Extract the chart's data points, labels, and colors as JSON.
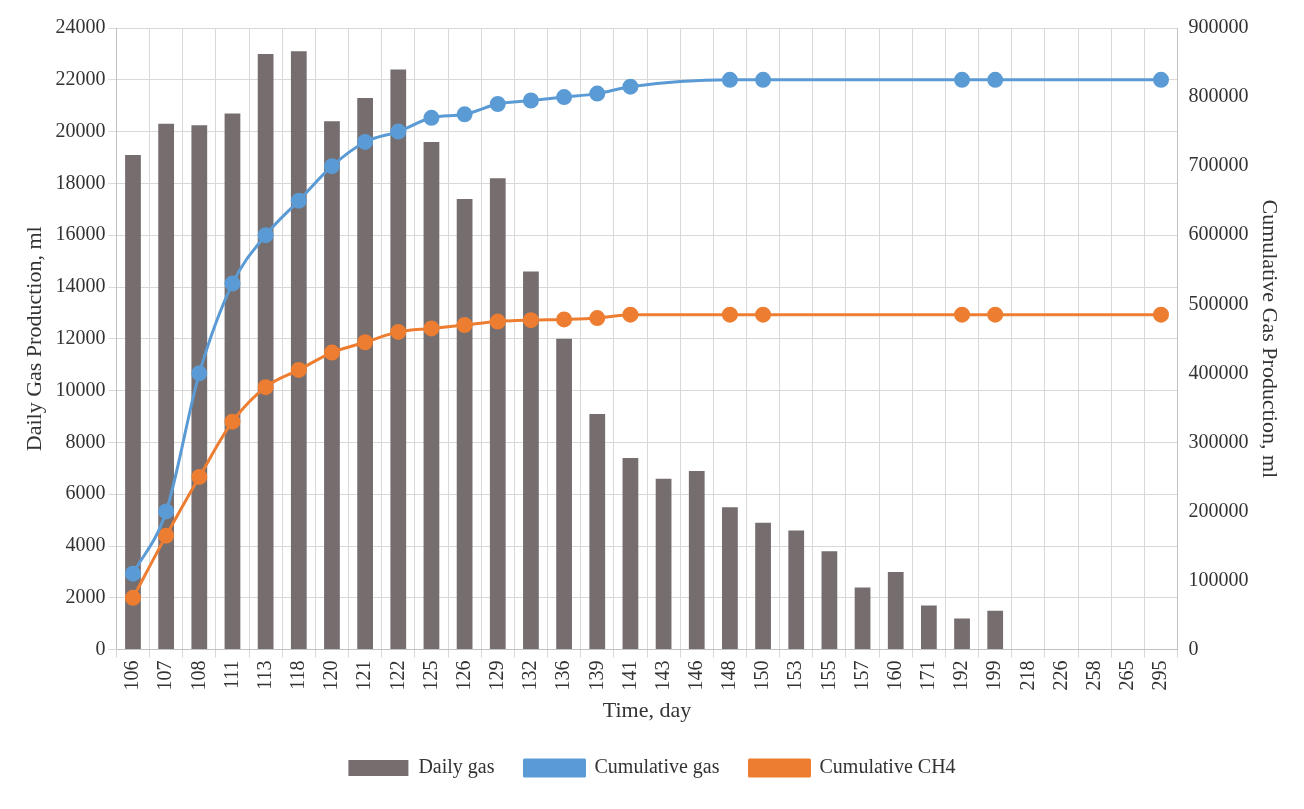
{
  "chart_data": {
    "type": "bar",
    "xlabel": "Time, day",
    "ylabel": "Daily Gas Production, ml",
    "y2label": "Cumulative Gas Production, ml",
    "categories": [
      "106",
      "107",
      "108",
      "111",
      "113",
      "118",
      "120",
      "121",
      "122",
      "125",
      "126",
      "129",
      "132",
      "136",
      "139",
      "141",
      "143",
      "146",
      "148",
      "150",
      "153",
      "155",
      "157",
      "160",
      "171",
      "192",
      "199",
      "218",
      "226",
      "258",
      "265",
      "295"
    ],
    "series": [
      {
        "name": "Daily gas",
        "color": "#766d6e",
        "values": [
          19100,
          20300,
          20250,
          20700,
          23000,
          23100,
          20400,
          21300,
          22400,
          19600,
          17400,
          18200,
          14600,
          12000,
          9100,
          7400,
          6600,
          6900,
          5500,
          4900,
          4600,
          3800,
          2400,
          3000,
          1700,
          1200,
          1500,
          0,
          0,
          0,
          0,
          0
        ]
      },
      {
        "name": "Cumulative gas",
        "type": "line",
        "axis": "y2",
        "color": "#5b9bd5",
        "values": [
          110000,
          200000,
          400000,
          530000,
          600000,
          650000,
          700000,
          735000,
          750000,
          770000,
          775000,
          790000,
          795000,
          800000,
          805000,
          815000,
          null,
          null,
          825000,
          825000,
          null,
          null,
          null,
          null,
          null,
          825000,
          825000,
          null,
          null,
          null,
          null,
          825000
        ]
      },
      {
        "name": "Cumulative CH4",
        "type": "line",
        "axis": "y2",
        "color": "#ed7d31",
        "values": [
          75000,
          165000,
          250000,
          330000,
          380000,
          405000,
          430000,
          445000,
          460000,
          465000,
          470000,
          475000,
          477000,
          478000,
          480000,
          485000,
          null,
          null,
          485000,
          485000,
          null,
          null,
          null,
          null,
          null,
          485000,
          485000,
          null,
          null,
          null,
          null,
          485000
        ]
      }
    ],
    "ylim": [
      0,
      24000
    ],
    "yticks": [
      0,
      2000,
      4000,
      6000,
      8000,
      10000,
      12000,
      14000,
      16000,
      18000,
      20000,
      22000,
      24000
    ],
    "y2lim": [
      0,
      900000
    ],
    "y2ticks": [
      0,
      100000,
      200000,
      300000,
      400000,
      500000,
      600000,
      700000,
      800000,
      900000
    ],
    "grid": true,
    "legend": "bottom",
    "marker": "circle"
  }
}
